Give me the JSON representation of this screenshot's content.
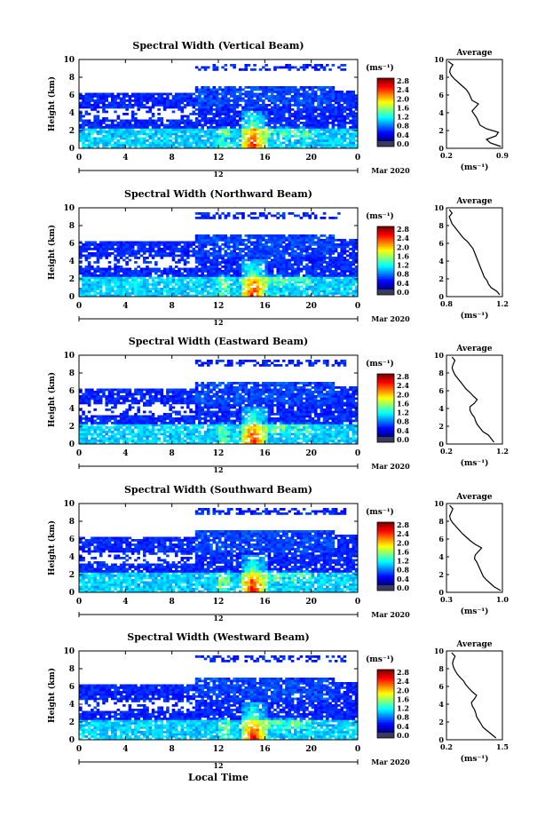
{
  "figure": {
    "xlabel": "Local Time",
    "date_label": "Mar 2020",
    "day_label": "12",
    "ylabel": "Height (km)",
    "x_ticks": [
      "0",
      "4",
      "8",
      "12",
      "16",
      "20",
      "0"
    ],
    "y_ticks": [
      "0",
      "2",
      "4",
      "6",
      "8",
      "10"
    ],
    "colorbar_unit": "(ms⁻¹)",
    "colorbar_ticks": [
      "0.0",
      "0.4",
      "0.8",
      "1.2",
      "1.6",
      "2.0",
      "2.4",
      "2.8"
    ],
    "avg_title": "Average",
    "avg_unit": "(ms⁻¹)"
  },
  "chart_data": [
    {
      "type": "heatmap",
      "title": "Spectral Width (Vertical Beam)",
      "xlabel": "Local Time",
      "ylabel": "Height (km)",
      "xlim": [
        0,
        24
      ],
      "ylim": [
        0,
        10
      ],
      "clim": [
        0.0,
        2.8
      ],
      "profile": {
        "title": "Average",
        "xlim": [
          0.2,
          0.9
        ],
        "x_ticks": [
          "0.2",
          "0.9"
        ],
        "heights": [
          0.2,
          0.6,
          1,
          1.4,
          1.8,
          2.2,
          2.6,
          3,
          3.4,
          3.8,
          4.2,
          4.6,
          5,
          5.4,
          5.8,
          6.2,
          6.6,
          7,
          7.4,
          7.8,
          8.2,
          8.6,
          9,
          9.4,
          9.8
        ],
        "values": [
          0.88,
          0.75,
          0.7,
          0.82,
          0.85,
          0.7,
          0.62,
          0.6,
          0.58,
          0.55,
          0.52,
          0.56,
          0.6,
          0.52,
          0.5,
          0.48,
          0.45,
          0.4,
          0.35,
          0.3,
          0.26,
          0.24,
          0.25,
          0.28,
          0.22
        ]
      }
    },
    {
      "type": "heatmap",
      "title": "Spectral Width (Northward Beam)",
      "xlabel": "Local Time",
      "ylabel": "Height (km)",
      "xlim": [
        0,
        24
      ],
      "ylim": [
        0,
        10
      ],
      "clim": [
        0.0,
        2.8
      ],
      "profile": {
        "title": "Average",
        "xlim": [
          0.8,
          1.2
        ],
        "x_ticks": [
          "0.8",
          "1.2"
        ],
        "heights": [
          0.2,
          0.6,
          1,
          1.4,
          1.8,
          2.2,
          2.6,
          3,
          3.4,
          3.8,
          4.2,
          4.6,
          5,
          5.4,
          5.8,
          6.2,
          6.6,
          7,
          7.4,
          7.8,
          8.2,
          8.6,
          9,
          9.4,
          9.8
        ],
        "values": [
          1.18,
          1.16,
          1.12,
          1.1,
          1.09,
          1.07,
          1.06,
          1.05,
          1.04,
          1.03,
          1.02,
          1.01,
          1.0,
          0.99,
          0.97,
          0.95,
          0.92,
          0.9,
          0.88,
          0.86,
          0.84,
          0.83,
          0.82,
          0.84,
          0.82
        ]
      }
    },
    {
      "type": "heatmap",
      "title": "Spectral Width (Eastward Beam)",
      "xlabel": "Local Time",
      "ylabel": "Height (km)",
      "xlim": [
        0,
        24
      ],
      "ylim": [
        0,
        10
      ],
      "clim": [
        0.0,
        2.8
      ],
      "profile": {
        "title": "Average",
        "xlim": [
          0.2,
          1.2
        ],
        "x_ticks": [
          "0.2",
          "1.2"
        ],
        "heights": [
          0.2,
          0.6,
          1,
          1.4,
          1.8,
          2.2,
          2.6,
          3,
          3.4,
          3.8,
          4.2,
          4.6,
          5,
          5.4,
          5.8,
          6.2,
          6.6,
          7,
          7.4,
          7.8,
          8.2,
          8.6,
          9,
          9.4,
          9.8
        ],
        "values": [
          1.05,
          1.0,
          0.95,
          0.85,
          0.8,
          0.75,
          0.72,
          0.7,
          0.65,
          0.62,
          0.62,
          0.7,
          0.75,
          0.68,
          0.62,
          0.55,
          0.5,
          0.45,
          0.4,
          0.35,
          0.32,
          0.3,
          0.32,
          0.35,
          0.3
        ]
      }
    },
    {
      "type": "heatmap",
      "title": "Spectral Width (Southward Beam)",
      "xlabel": "Local Time",
      "ylabel": "Height (km)",
      "xlim": [
        0,
        24
      ],
      "ylim": [
        0,
        10
      ],
      "clim": [
        0.0,
        2.8
      ],
      "profile": {
        "title": "Average",
        "xlim": [
          0.3,
          1.0
        ],
        "x_ticks": [
          "0.3",
          "1.0"
        ],
        "heights": [
          0.2,
          0.6,
          1,
          1.4,
          1.8,
          2.2,
          2.6,
          3,
          3.4,
          3.8,
          4.2,
          4.6,
          5,
          5.4,
          5.8,
          6.2,
          6.6,
          7,
          7.4,
          7.8,
          8.2,
          8.6,
          9,
          9.4,
          9.8
        ],
        "values": [
          0.98,
          0.9,
          0.85,
          0.8,
          0.76,
          0.74,
          0.72,
          0.7,
          0.68,
          0.65,
          0.66,
          0.7,
          0.74,
          0.66,
          0.6,
          0.55,
          0.5,
          0.46,
          0.42,
          0.38,
          0.35,
          0.34,
          0.36,
          0.38,
          0.34
        ]
      }
    },
    {
      "type": "heatmap",
      "title": "Spectral Width (Westward Beam)",
      "xlabel": "Local Time",
      "ylabel": "Height (km)",
      "xlim": [
        0,
        24
      ],
      "ylim": [
        0,
        10
      ],
      "clim": [
        0.0,
        2.8
      ],
      "profile": {
        "title": "Average",
        "xlim": [
          0.2,
          1.5
        ],
        "x_ticks": [
          "0.2",
          "1.5"
        ],
        "heights": [
          0.2,
          0.6,
          1,
          1.4,
          1.8,
          2.2,
          2.6,
          3,
          3.4,
          3.8,
          4.2,
          4.6,
          5,
          5.4,
          5.8,
          6.2,
          6.6,
          7,
          7.4,
          7.8,
          8.2,
          8.6,
          9,
          9.4,
          9.8
        ],
        "values": [
          1.35,
          1.25,
          1.15,
          1.05,
          1.0,
          0.95,
          0.9,
          0.88,
          0.85,
          0.8,
          0.78,
          0.85,
          0.9,
          0.8,
          0.72,
          0.65,
          0.6,
          0.52,
          0.45,
          0.4,
          0.36,
          0.34,
          0.36,
          0.4,
          0.32
        ]
      }
    }
  ]
}
